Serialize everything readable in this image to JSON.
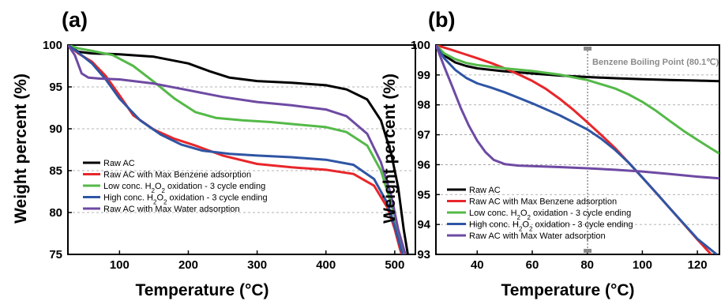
{
  "chart_data": [
    {
      "panel_label": "(a)",
      "type": "line",
      "xlabel": "Temperature (°C)",
      "ylabel": "Weight percent (%)",
      "xlim": [
        25,
        530
      ],
      "ylim": [
        75,
        100
      ],
      "xticks": [
        100,
        200,
        300,
        400,
        500
      ],
      "yticks": [
        75,
        80,
        85,
        90,
        95,
        100
      ],
      "grid": "horizontal dashed",
      "legend_position": "bottom-left",
      "series": [
        {
          "name": "Raw AC",
          "color": "#000000",
          "x": [
            25,
            40,
            60,
            100,
            150,
            200,
            230,
            260,
            300,
            350,
            400,
            430,
            460,
            480,
            495,
            505,
            513,
            520
          ],
          "y": [
            100,
            99.2,
            99.0,
            98.9,
            98.6,
            97.8,
            96.9,
            96.1,
            95.7,
            95.5,
            95.2,
            94.7,
            93.5,
            91.0,
            87.0,
            83.0,
            78.0,
            74.5
          ]
        },
        {
          "name": "Raw AC with Max Benzene adsorption",
          "color": "#e8262a",
          "x": [
            25,
            40,
            60,
            80,
            100,
            120,
            150,
            180,
            210,
            250,
            300,
            350,
            400,
            440,
            470,
            490,
            500,
            507,
            512
          ],
          "y": [
            100,
            99.0,
            98.0,
            96.3,
            94.0,
            91.6,
            89.9,
            88.8,
            88.0,
            86.8,
            85.8,
            85.4,
            85.1,
            84.6,
            83.2,
            80.5,
            78.0,
            75.8,
            74.5
          ]
        },
        {
          "name": "Low conc. H₂O₂ oxidation - 3 cycle ending",
          "color": "#54b948",
          "x": [
            25,
            40,
            60,
            90,
            120,
            150,
            180,
            210,
            240,
            280,
            320,
            360,
            400,
            430,
            460,
            480,
            495,
            507,
            515
          ],
          "y": [
            100,
            99.6,
            99.3,
            98.8,
            97.5,
            95.6,
            93.6,
            92.0,
            91.3,
            91.0,
            90.8,
            90.5,
            90.2,
            89.6,
            88.0,
            85.0,
            81.0,
            77.0,
            74.5
          ]
        },
        {
          "name": "High conc. H₂O₂ oxidation - 3 cycle ending",
          "color": "#2f55a4",
          "x": [
            25,
            40,
            60,
            80,
            100,
            130,
            160,
            190,
            220,
            260,
            300,
            350,
            400,
            440,
            470,
            490,
            500,
            508,
            513
          ],
          "y": [
            100,
            99.1,
            97.8,
            95.9,
            93.6,
            91.0,
            89.3,
            88.1,
            87.4,
            87.0,
            86.8,
            86.6,
            86.3,
            85.7,
            84.0,
            81.0,
            78.3,
            76.0,
            74.5
          ]
        },
        {
          "name": "Raw AC with Max Water adsorption",
          "color": "#6e4aa3",
          "x": [
            25,
            35,
            45,
            55,
            70,
            100,
            150,
            200,
            250,
            300,
            350,
            400,
            430,
            460,
            480,
            495,
            505,
            512,
            517
          ],
          "y": [
            100,
            98.8,
            96.6,
            96.1,
            96.0,
            95.9,
            95.4,
            94.6,
            93.8,
            93.2,
            92.8,
            92.3,
            91.5,
            89.4,
            86.0,
            82.0,
            78.0,
            76.0,
            74.5
          ]
        }
      ]
    },
    {
      "panel_label": "(b)",
      "type": "line",
      "xlabel": "Temperature (°C)",
      "ylabel": "Weight percent (%)",
      "xlim": [
        25,
        128
      ],
      "ylim": [
        93,
        100
      ],
      "xticks": [
        40,
        60,
        80,
        100,
        120
      ],
      "yticks": [
        93,
        94,
        95,
        96,
        97,
        98,
        99,
        100
      ],
      "grid": "horizontal dashed",
      "legend_position": "bottom-left",
      "annotation": {
        "text": "Benzene Boiling Point (80.1℃)",
        "x": 80.1,
        "color": "#8a8a8a"
      },
      "series": [
        {
          "name": "Raw AC",
          "color": "#000000",
          "x": [
            25,
            28,
            32,
            36,
            40,
            50,
            60,
            70,
            80,
            90,
            100,
            110,
            120,
            128
          ],
          "y": [
            100,
            99.65,
            99.42,
            99.3,
            99.22,
            99.12,
            99.05,
            98.98,
            98.93,
            98.89,
            98.86,
            98.83,
            98.81,
            98.79
          ]
        },
        {
          "name": "Raw AC with Max Benzene adsorption",
          "color": "#e8262a",
          "x": [
            25,
            30,
            35,
            40,
            45,
            50,
            55,
            60,
            65,
            70,
            75,
            80,
            85,
            90,
            95,
            100,
            105,
            110,
            115,
            120,
            125
          ],
          "y": [
            100,
            99.86,
            99.71,
            99.56,
            99.4,
            99.22,
            99.02,
            98.8,
            98.53,
            98.2,
            97.83,
            97.42,
            97.0,
            96.56,
            96.07,
            95.57,
            95.06,
            94.54,
            94.02,
            93.5,
            93.0
          ]
        },
        {
          "name": "Low conc. H₂O₂ oxidation - 3 cycle ending",
          "color": "#54b948",
          "x": [
            25,
            28,
            32,
            36,
            40,
            50,
            60,
            70,
            80,
            90,
            95,
            100,
            105,
            110,
            115,
            120,
            125,
            128
          ],
          "y": [
            100,
            99.72,
            99.53,
            99.4,
            99.33,
            99.22,
            99.13,
            99.01,
            98.83,
            98.55,
            98.35,
            98.1,
            97.8,
            97.46,
            97.13,
            96.83,
            96.54,
            96.37
          ]
        },
        {
          "name": "High conc. H₂O₂ oxidation - 3 cycle ending",
          "color": "#2f55a4",
          "x": [
            25,
            28,
            32,
            36,
            40,
            45,
            50,
            60,
            70,
            80,
            85,
            90,
            95,
            100,
            105,
            110,
            115,
            120,
            127
          ],
          "y": [
            100,
            99.56,
            99.17,
            98.9,
            98.72,
            98.58,
            98.42,
            98.05,
            97.65,
            97.18,
            96.87,
            96.5,
            96.07,
            95.57,
            95.06,
            94.54,
            94.03,
            93.52,
            93.0
          ]
        },
        {
          "name": "Raw AC with Max Water adsorption",
          "color": "#6e4aa3",
          "x": [
            25,
            28,
            31,
            34,
            37,
            40,
            43,
            46,
            50,
            55,
            60,
            70,
            80,
            90,
            100,
            110,
            120,
            128
          ],
          "y": [
            100,
            99.28,
            98.6,
            97.9,
            97.3,
            96.8,
            96.42,
            96.16,
            96.02,
            95.97,
            95.95,
            95.92,
            95.88,
            95.83,
            95.77,
            95.69,
            95.6,
            95.54
          ]
        }
      ]
    }
  ]
}
